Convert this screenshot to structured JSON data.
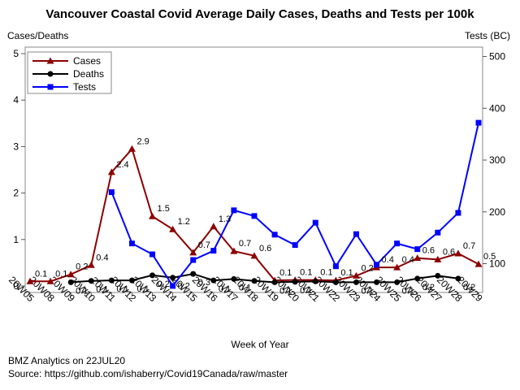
{
  "chart_data": {
    "type": "line",
    "title": "Vancouver Coastal Covid Average Daily Cases, Deaths and Tests per 100k",
    "y_left_label": "Cases/Deaths",
    "y_right_label": "Tests (BC)",
    "xlabel": "Week of Year",
    "categories": [
      "20W05",
      "20W08",
      "20W09",
      "20W10",
      "20W11",
      "20W12",
      "20W13",
      "20W14",
      "20W15",
      "20W16",
      "20W17",
      "20W18",
      "20W19",
      "20W20",
      "20W21",
      "20W22",
      "20W23",
      "20W24",
      "20W25",
      "20W26",
      "20W27",
      "20W28",
      "20W29"
    ],
    "y_left_range": [
      0,
      5
    ],
    "y_left_ticks": [
      0,
      1,
      2,
      3,
      4,
      5
    ],
    "y_right_range": [
      46,
      520
    ],
    "y_right_ticks": [
      100,
      200,
      300,
      400,
      500
    ],
    "legend_position": "top-left",
    "grid": false,
    "series": [
      {
        "name": "Cases",
        "axis": "left",
        "color": "#8b0000",
        "marker": "triangle",
        "values": [
          0.1,
          0.1,
          0.25,
          0.45,
          2.45,
          2.95,
          1.5,
          1.22,
          0.72,
          1.28,
          0.75,
          0.65,
          0.12,
          0.13,
          0.13,
          0.12,
          0.22,
          0.4,
          0.4,
          0.6,
          0.57,
          0.7,
          0.47
        ],
        "labels": [
          "0.1",
          "0.1",
          "0.2",
          "0.4",
          "2.4",
          "2.9",
          "1.5",
          "1.2",
          "0.7",
          "1.3",
          "0.7",
          "0.6",
          "0.1",
          "0.1",
          "0.1",
          "0.1",
          "0.2",
          "0.4",
          "0.4",
          "0.6",
          "0.6",
          "0.7",
          "0.5"
        ]
      },
      {
        "name": "Deaths",
        "axis": "left",
        "color": "#000000",
        "marker": "circle",
        "values": [
          null,
          null,
          0.08,
          0.11,
          0.12,
          0.12,
          0.23,
          0.18,
          0.26,
          0.12,
          0.15,
          0.11,
          0.08,
          0.09,
          0.1,
          0.08,
          0.08,
          0.08,
          0.08,
          0.16,
          0.22,
          0.16,
          null
        ],
        "labels": [
          "",
          "",
          "0.1",
          "0.1",
          "0.1",
          "0.1",
          "0.2",
          "0.2",
          "0.3",
          "0.1",
          "0.1",
          "",
          "0.1",
          "0.1",
          "",
          "",
          "0.1",
          "",
          "0.1",
          "0.2",
          "",
          "0.2",
          ""
        ]
      },
      {
        "name": "Tests",
        "axis": "right",
        "color": "#0000ff",
        "marker": "square",
        "values": [
          null,
          null,
          null,
          null,
          238,
          139,
          118,
          57,
          107,
          125,
          203,
          192,
          156,
          136,
          179,
          95,
          157,
          98,
          139,
          128,
          160,
          198,
          372
        ]
      }
    ]
  },
  "footer": {
    "line1": "BMZ Analytics on 22JUL20",
    "line2": "Source: https://github.com/ishaberry/Covid19Canada/raw/master"
  }
}
